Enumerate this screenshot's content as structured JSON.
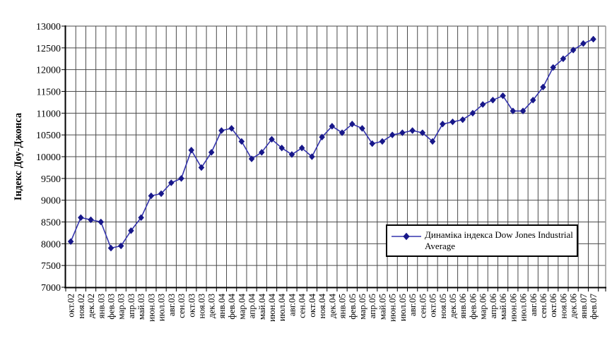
{
  "chart_data": {
    "type": "line",
    "title": "",
    "xlabel": "",
    "ylabel": "Індекс Доу-Джонса",
    "legend_position": "inside-bottom-right",
    "grid": true,
    "marker": "diamond",
    "xtick_rotation": -90,
    "ylim": [
      7000,
      13000
    ],
    "ytick_step": 500,
    "ytick_labels": [
      "13000",
      "12500",
      "12000",
      "11500",
      "11000",
      "10500",
      "10000",
      "9500",
      "9000",
      "8500",
      "8000",
      "7500",
      "7000"
    ],
    "categories": [
      "окт.02",
      "ноя.02",
      "дек.02",
      "янв.03",
      "фев.03",
      "мар.03",
      "апр.03",
      "май.03",
      "июн.03",
      "июл.03",
      "авг.03",
      "сен.03",
      "окт.03",
      "ноя.03",
      "дек.03",
      "янв.04",
      "фев.04",
      "мар.04",
      "апр.04",
      "май.04",
      "июн.04",
      "июл.04",
      "авг.04",
      "сен.04",
      "окт.04",
      "ноя.04",
      "дек.04",
      "янв.05",
      "фев.05",
      "мар.05",
      "апр.05",
      "май.05",
      "июн.05",
      "июл.05",
      "авг.05",
      "сен.05",
      "окт.05",
      "ноя.05",
      "дек.05",
      "янв.06",
      "фев.06",
      "мар.06",
      "апр.06",
      "май.06",
      "июн.06",
      "июл.06",
      "авг.06",
      "сен.06",
      "окт.06",
      "ноя.06",
      "дек.06",
      "янв.07",
      "фев.07"
    ],
    "series": [
      {
        "name": "Динаміка індекса Dow Jones Industrial Average",
        "values": [
          8050,
          8600,
          8550,
          8500,
          7900,
          7950,
          8300,
          8600,
          9100,
          9150,
          9400,
          9500,
          10150,
          9750,
          10100,
          10600,
          10650,
          10350,
          9950,
          10100,
          10400,
          10200,
          10050,
          10200,
          10000,
          10450,
          10700,
          10550,
          10750,
          10650,
          10300,
          10350,
          10500,
          10550,
          10600,
          10550,
          10350,
          10750,
          10800,
          10850,
          11000,
          11200,
          11300,
          11400,
          11050,
          11050,
          11300,
          11600,
          12050,
          12250,
          12450,
          12600,
          12700
        ]
      }
    ],
    "colors": {
      "line": "#3434ad",
      "marker": "#181889",
      "grid": "#4a4a4a",
      "axis": "#000000",
      "plot_border": "#999999",
      "background": "#ffffff",
      "legend_border": "#000000",
      "text": "#000000"
    }
  }
}
